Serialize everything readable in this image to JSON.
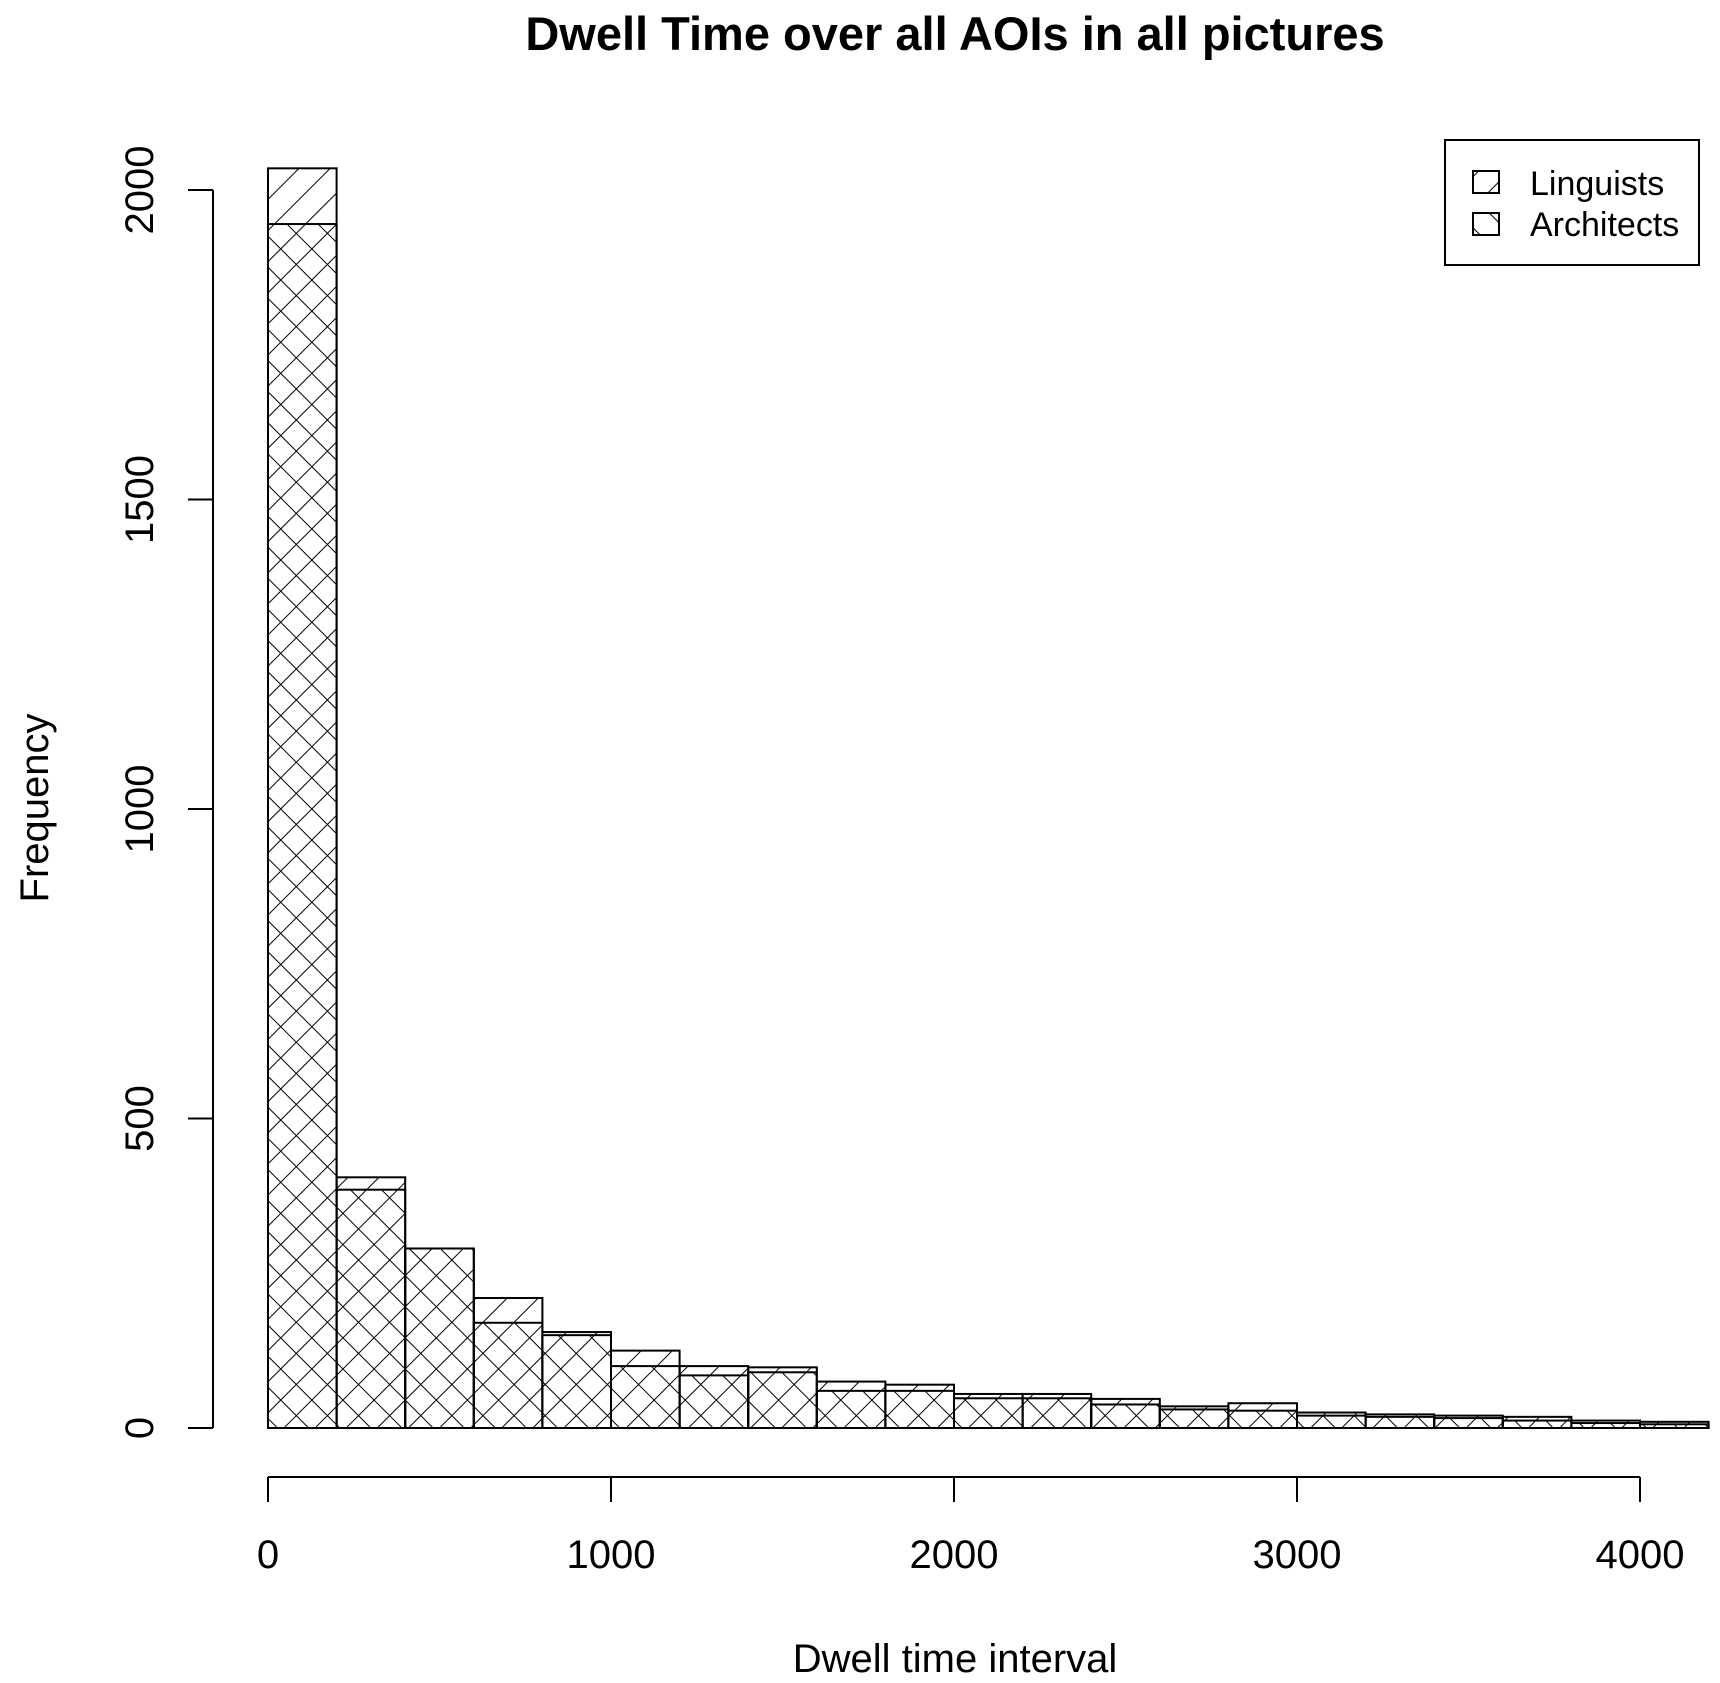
{
  "chart_data": {
    "type": "bar",
    "title": "Dwell Time over all AOIs in all pictures",
    "xlabel": "Dwell time interval",
    "ylabel": "Frequency",
    "xlim": [
      0,
      4200
    ],
    "ylim": [
      0,
      2000
    ],
    "x_ticks": [
      0,
      1000,
      2000,
      3000,
      4000
    ],
    "y_ticks": [
      0,
      500,
      1000,
      1500,
      2000
    ],
    "bin_width": 200,
    "bins": [
      0,
      200,
      400,
      600,
      800,
      1000,
      1200,
      1400,
      1600,
      1800,
      2000,
      2200,
      2400,
      2600,
      2800,
      3000,
      3200,
      3400,
      3600,
      3800,
      4000
    ],
    "legend_position": "top-right",
    "grid": false,
    "series": [
      {
        "name": "Linguists",
        "pattern": "hatch-45",
        "values": [
          2035,
          405,
          290,
          210,
          155,
          125,
          100,
          98,
          75,
          70,
          55,
          55,
          47,
          35,
          40,
          25,
          22,
          20,
          18,
          12,
          10
        ]
      },
      {
        "name": "Architects",
        "pattern": "hatch-135",
        "values": [
          1945,
          385,
          290,
          170,
          150,
          100,
          85,
          90,
          60,
          60,
          48,
          48,
          38,
          30,
          28,
          20,
          18,
          16,
          12,
          8,
          6
        ]
      }
    ]
  }
}
